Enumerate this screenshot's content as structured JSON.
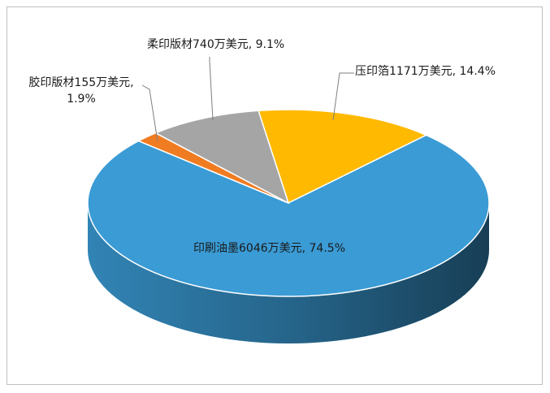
{
  "chart_data": {
    "type": "pie3d",
    "categories": [
      "压印箔",
      "印刷油墨",
      "胶印版材",
      "柔印版材"
    ],
    "values": [
      1171,
      6046,
      155,
      740
    ],
    "value_labels": [
      "1171万美元, 14.4%",
      "6046万美元, 74.5%",
      "155万美元, 1.9%",
      "740万美元, 9.1%"
    ],
    "colors": [
      "#ffb900",
      "#3a9bd5",
      "#f07c22",
      "#a5a5a5"
    ]
  }
}
